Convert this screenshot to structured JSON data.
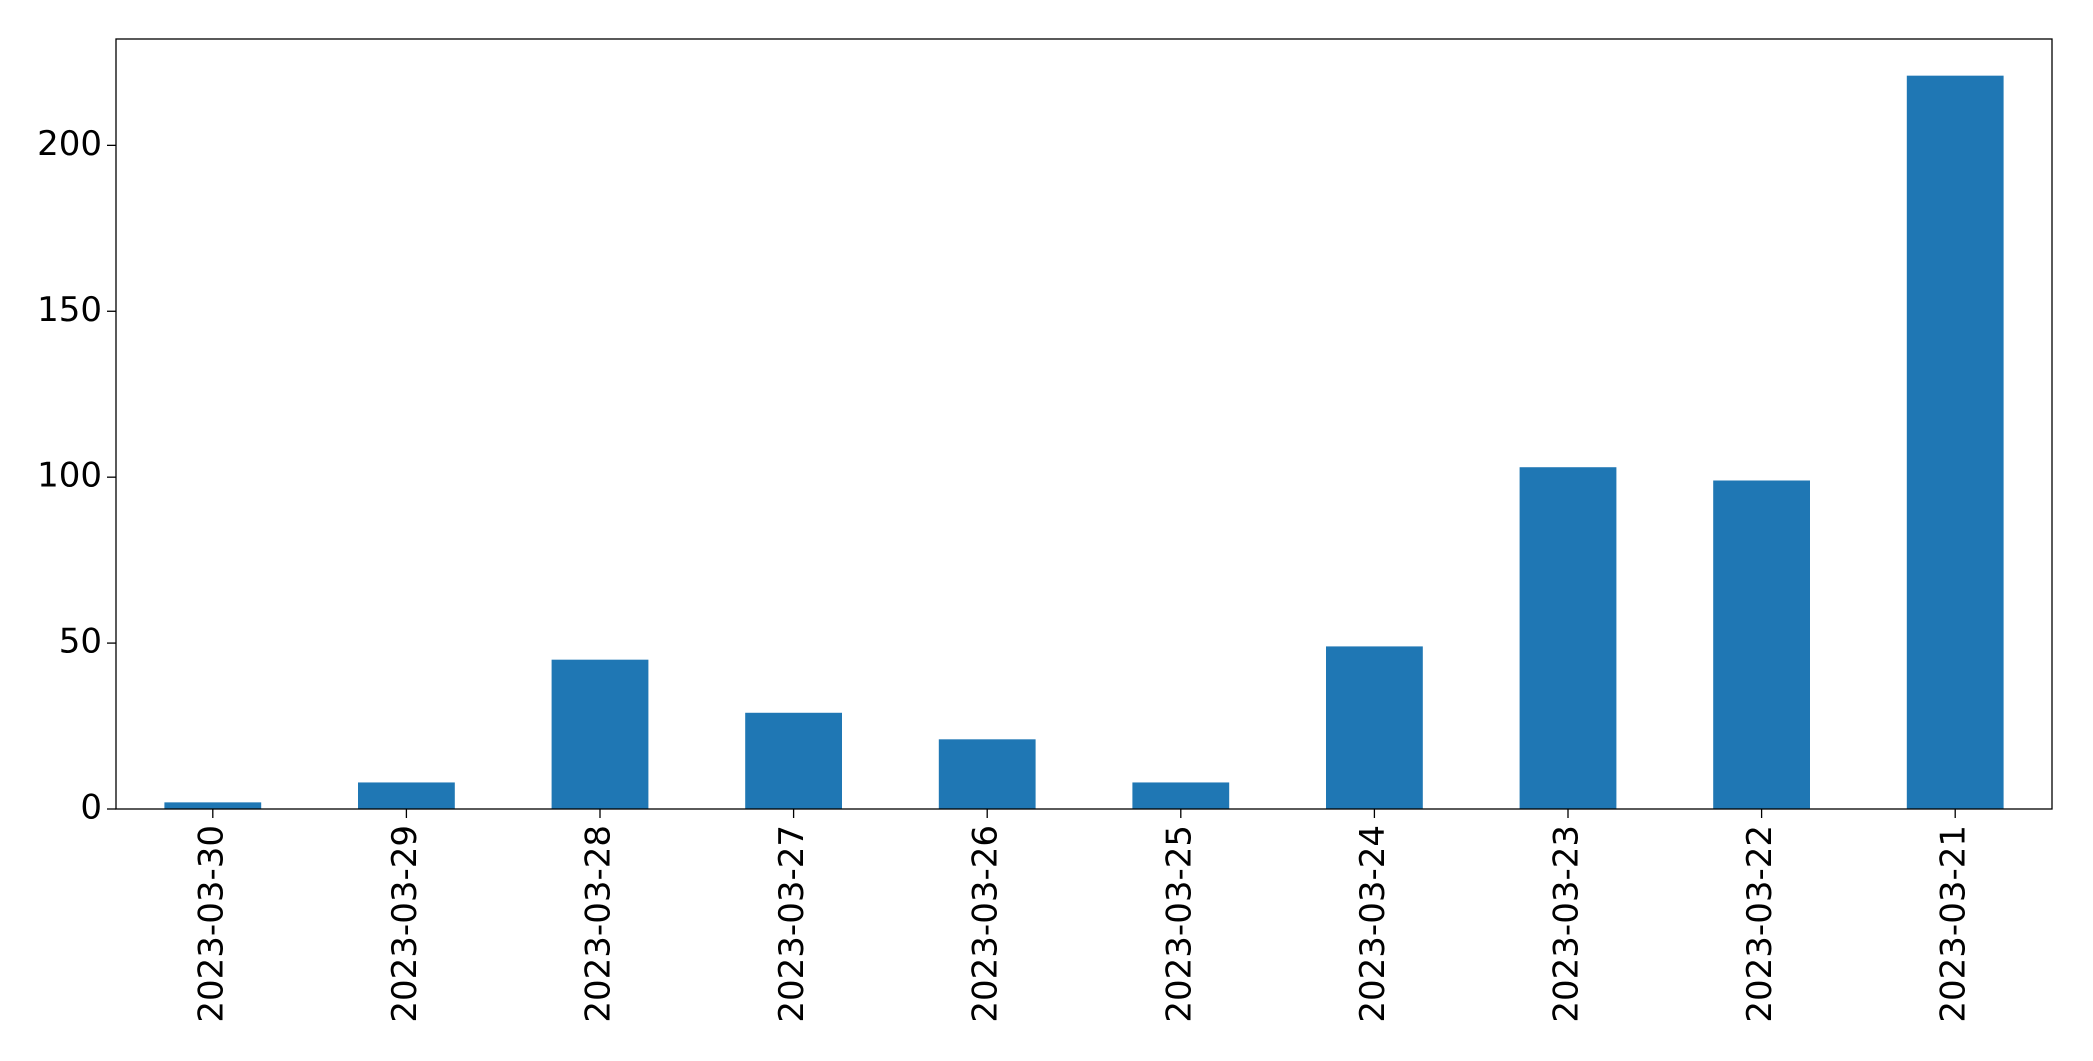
{
  "chart_data": {
    "type": "bar",
    "categories": [
      "2023-03-30",
      "2023-03-29",
      "2023-03-28",
      "2023-03-27",
      "2023-03-26",
      "2023-03-25",
      "2023-03-24",
      "2023-03-23",
      "2023-03-22",
      "2023-03-21"
    ],
    "values": [
      2,
      8,
      45,
      29,
      21,
      8,
      49,
      103,
      99,
      221
    ],
    "color": "#1f77b4",
    "ylim": [
      0,
      232.05
    ],
    "yticks": [
      0,
      50,
      100,
      150,
      200
    ],
    "grid": false
  }
}
